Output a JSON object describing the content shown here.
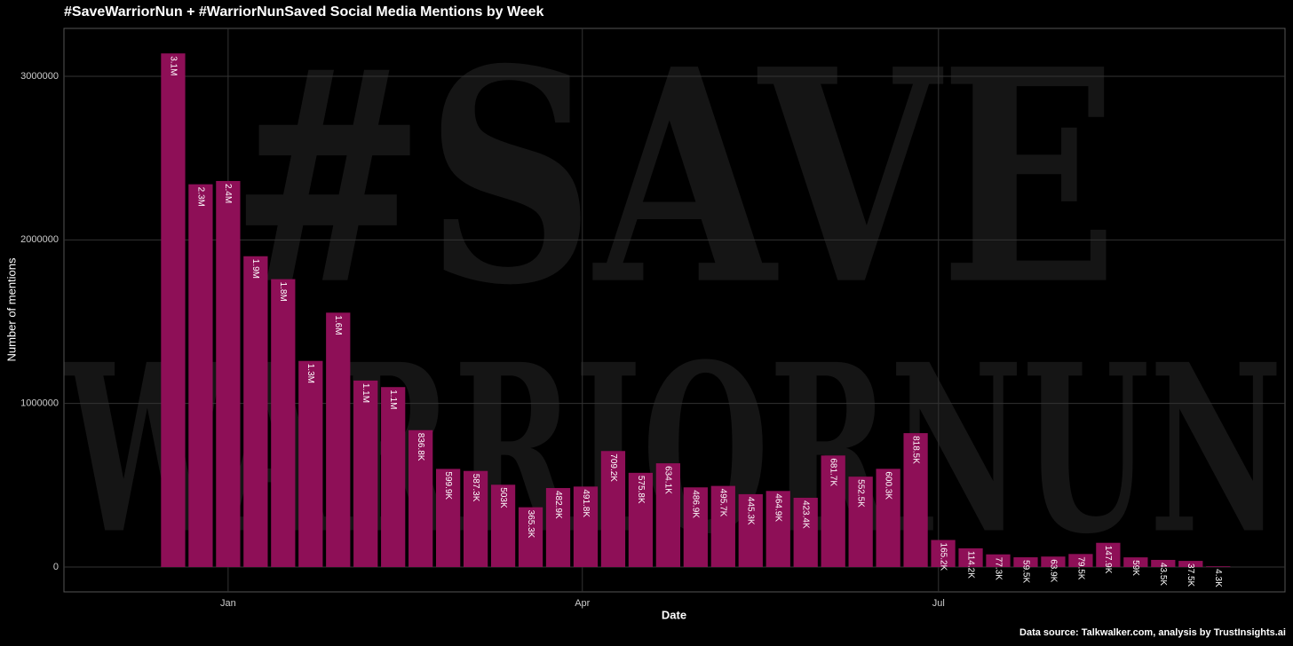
{
  "chart_data": {
    "type": "bar",
    "title": "#SaveWarriorNun + #WarriorNunSaved Social Media Mentions by Week",
    "x_label": "Date",
    "y_label": "Number of mentions",
    "source": "Data source: Talkwalker.com, analysis by TrustInsights.ai",
    "background_text": [
      "#SAVE",
      "WARRIORNUN"
    ],
    "color": "#8e0f57",
    "grid": true,
    "categories": [
      null,
      null,
      null,
      null,
      null,
      null,
      null,
      null,
      null,
      null,
      null,
      null,
      null,
      null,
      null,
      null,
      null,
      null,
      null,
      null,
      null,
      null,
      null,
      null,
      null,
      null,
      null,
      null,
      null,
      null,
      null,
      null,
      null,
      null,
      null,
      null,
      null,
      null,
      null
    ],
    "values": [
      3140000,
      2340000,
      2360000,
      1900000,
      1760000,
      1260000,
      1555000,
      1140000,
      1100000,
      836800,
      599900,
      587300,
      503000,
      365300,
      482900,
      491800,
      709200,
      575800,
      634100,
      486900,
      495700,
      445300,
      464900,
      423400,
      681700,
      552500,
      600300,
      818500,
      165200,
      114200,
      77300,
      59500,
      63900,
      79500,
      147900,
      59000,
      43500,
      37500,
      4300
    ],
    "value_labels": [
      "3.1M",
      "2.3M",
      "2.4M",
      "1.9M",
      "1.8M",
      "1.3M",
      "1.6M",
      "1.1M",
      "1.1M",
      "836.8K",
      "599.9K",
      "587.3K",
      "503K",
      "365.3K",
      "482.9K",
      "491.8K",
      "709.2K",
      "575.8K",
      "634.1K",
      "486.9K",
      "495.7K",
      "445.3K",
      "464.9K",
      "423.4K",
      "681.7K",
      "552.5K",
      "600.3K",
      "818.5K",
      "165.2K",
      "114.2K",
      "77.3K",
      "59.5K",
      "63.9K",
      "79.5K",
      "147.9K",
      "59K",
      "43.5K",
      "37.5K",
      "4.3K"
    ],
    "xlim": [
      -3.97,
      40.43
    ],
    "xticks": [
      {
        "value": 2,
        "label": "Jan"
      },
      {
        "value": 14.88,
        "label": "Apr"
      },
      {
        "value": 27.83,
        "label": "Jul"
      }
    ],
    "ylim": [
      -152000,
      3293000
    ],
    "yticks": [
      0,
      1000000,
      2000000,
      3000000
    ]
  }
}
